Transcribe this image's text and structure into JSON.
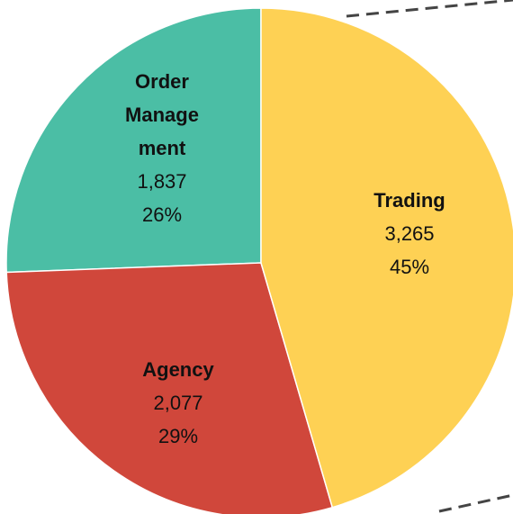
{
  "chart_data": {
    "type": "pie",
    "categories": [
      "Trading",
      "Agency",
      "Order Management"
    ],
    "values": [
      3265,
      2077,
      1837
    ],
    "value_labels": [
      "3,265",
      "2,077",
      "1,837"
    ],
    "percents": [
      45,
      29,
      26
    ],
    "percent_labels": [
      "45%",
      "29%",
      "26%"
    ],
    "colors": [
      "#fed154",
      "#d0473b",
      "#4bbea5"
    ]
  }
}
